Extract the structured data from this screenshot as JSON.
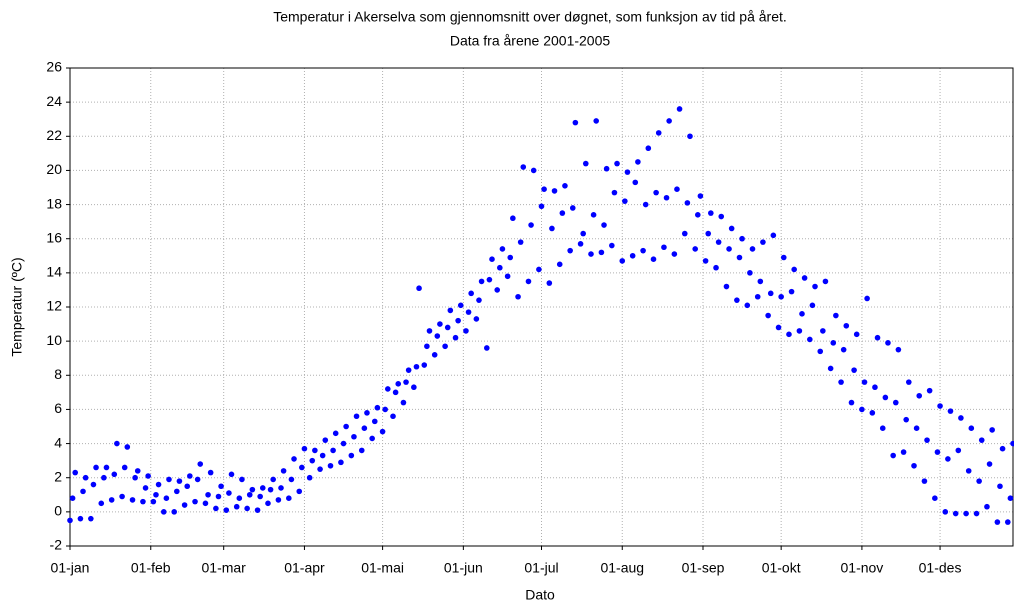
{
  "chart_data": {
    "type": "scatter",
    "title": "Temperatur i Akerselva som gjennomsnitt over døgnet, som funksjon av tid på året.",
    "subtitle": "Data fra årene 2001-2005",
    "x_label": "Dato",
    "y_label": "Temperatur (ºC)",
    "color": "#0000ff",
    "grid": true,
    "xlim": [
      0,
      362
    ],
    "ylim": [
      -2,
      26
    ],
    "xticks": [
      {
        "value": 0,
        "label": "01-jan"
      },
      {
        "value": 31,
        "label": "01-feb"
      },
      {
        "value": 59,
        "label": "01-mar"
      },
      {
        "value": 90,
        "label": "01-apr"
      },
      {
        "value": 120,
        "label": "01-mai"
      },
      {
        "value": 151,
        "label": "01-jun"
      },
      {
        "value": 181,
        "label": "01-jul"
      },
      {
        "value": 212,
        "label": "01-aug"
      },
      {
        "value": 243,
        "label": "01-sep"
      },
      {
        "value": 273,
        "label": "01-okt"
      },
      {
        "value": 304,
        "label": "01-nov"
      },
      {
        "value": 334,
        "label": "01-des"
      }
    ],
    "yticks": [
      -2,
      0,
      2,
      4,
      6,
      8,
      10,
      12,
      14,
      16,
      18,
      20,
      22,
      24,
      26
    ],
    "x": [
      0,
      1,
      2,
      4,
      5,
      6,
      8,
      9,
      10,
      12,
      13,
      14,
      16,
      17,
      18,
      20,
      21,
      22,
      24,
      25,
      26,
      28,
      29,
      30,
      32,
      33,
      34,
      36,
      37,
      38,
      40,
      41,
      42,
      44,
      45,
      46,
      48,
      49,
      50,
      52,
      53,
      54,
      56,
      57,
      58,
      60,
      61,
      62,
      64,
      65,
      66,
      68,
      69,
      70,
      72,
      73,
      74,
      76,
      77,
      78,
      80,
      81,
      82,
      84,
      85,
      86,
      88,
      89,
      90,
      92,
      93,
      94,
      96,
      97,
      98,
      100,
      101,
      102,
      104,
      105,
      106,
      108,
      109,
      110,
      112,
      113,
      114,
      116,
      117,
      118,
      120,
      121,
      122,
      124,
      125,
      126,
      128,
      129,
      130,
      132,
      133,
      134,
      136,
      137,
      138,
      140,
      141,
      142,
      144,
      145,
      146,
      148,
      149,
      150,
      152,
      153,
      154,
      156,
      157,
      158,
      160,
      161,
      162,
      164,
      165,
      166,
      168,
      169,
      170,
      172,
      173,
      174,
      176,
      177,
      178,
      180,
      181,
      182,
      184,
      185,
      186,
      188,
      189,
      190,
      192,
      193,
      194,
      196,
      197,
      198,
      200,
      201,
      202,
      204,
      205,
      206,
      208,
      209,
      210,
      212,
      213,
      214,
      216,
      217,
      218,
      220,
      221,
      222,
      224,
      225,
      226,
      228,
      229,
      230,
      232,
      233,
      234,
      236,
      237,
      238,
      240,
      241,
      242,
      244,
      245,
      246,
      248,
      249,
      250,
      252,
      253,
      254,
      256,
      257,
      258,
      260,
      261,
      262,
      264,
      265,
      266,
      268,
      269,
      270,
      272,
      273,
      274,
      276,
      277,
      278,
      280,
      281,
      282,
      284,
      285,
      286,
      288,
      289,
      290,
      292,
      293,
      294,
      296,
      297,
      298,
      300,
      301,
      302,
      304,
      305,
      306,
      308,
      309,
      310,
      312,
      313,
      314,
      316,
      317,
      318,
      320,
      321,
      322,
      324,
      325,
      326,
      328,
      329,
      330,
      332,
      333,
      334,
      336,
      337,
      338,
      340,
      341,
      342,
      344,
      345,
      346,
      348,
      349,
      350,
      352,
      353,
      354,
      356,
      357,
      358,
      360,
      361,
      362
    ],
    "values": [
      -0.5,
      0.8,
      2.3,
      -0.4,
      1.2,
      2.0,
      -0.4,
      1.6,
      2.6,
      0.5,
      2.0,
      2.6,
      0.7,
      2.2,
      4.0,
      0.9,
      2.6,
      3.8,
      0.7,
      2.0,
      2.4,
      0.6,
      1.4,
      2.1,
      0.6,
      1.0,
      1.6,
      0.0,
      0.8,
      1.9,
      0.0,
      1.2,
      1.8,
      0.4,
      1.5,
      2.1,
      0.6,
      1.9,
      2.8,
      0.5,
      1.0,
      2.3,
      0.2,
      0.9,
      1.5,
      0.1,
      1.1,
      2.2,
      0.3,
      0.8,
      1.9,
      0.2,
      1.0,
      1.3,
      0.1,
      0.9,
      1.4,
      0.5,
      1.3,
      1.9,
      0.7,
      1.4,
      2.4,
      0.8,
      1.9,
      3.1,
      1.2,
      2.6,
      3.7,
      2.0,
      3.0,
      3.6,
      2.5,
      3.3,
      4.2,
      2.7,
      3.6,
      4.6,
      2.9,
      4.0,
      5.0,
      3.3,
      4.4,
      5.6,
      3.6,
      4.9,
      5.8,
      4.3,
      5.3,
      6.1,
      4.7,
      6.0,
      7.2,
      5.6,
      7.0,
      7.5,
      6.4,
      7.6,
      8.3,
      7.3,
      8.5,
      13.1,
      8.6,
      9.7,
      10.6,
      9.2,
      10.3,
      11.0,
      9.7,
      10.8,
      11.8,
      10.2,
      11.2,
      12.1,
      10.6,
      11.7,
      12.8,
      11.3,
      12.4,
      13.5,
      9.6,
      13.6,
      14.8,
      13.0,
      14.3,
      15.4,
      13.8,
      14.9,
      17.2,
      12.6,
      15.8,
      20.2,
      13.5,
      16.8,
      20.0,
      14.2,
      17.9,
      18.9,
      13.4,
      16.6,
      18.8,
      14.5,
      17.5,
      19.1,
      15.3,
      17.8,
      22.8,
      15.7,
      16.3,
      20.4,
      15.1,
      17.4,
      22.9,
      15.2,
      16.8,
      20.1,
      15.6,
      18.7,
      20.4,
      14.7,
      18.2,
      19.9,
      15.0,
      19.3,
      20.5,
      15.3,
      18.0,
      21.3,
      14.8,
      18.7,
      22.2,
      15.5,
      18.4,
      22.9,
      15.1,
      18.9,
      23.6,
      16.3,
      18.1,
      22.0,
      15.4,
      17.4,
      18.5,
      14.7,
      16.3,
      17.5,
      14.3,
      15.8,
      17.3,
      13.2,
      15.4,
      16.6,
      12.4,
      14.9,
      16.0,
      12.1,
      14.0,
      15.4,
      12.6,
      13.5,
      15.8,
      11.5,
      12.8,
      16.2,
      10.8,
      12.6,
      14.9,
      10.4,
      12.9,
      14.2,
      10.6,
      11.6,
      13.7,
      10.1,
      12.1,
      13.2,
      9.4,
      10.6,
      13.5,
      8.4,
      9.9,
      11.5,
      7.6,
      9.5,
      10.9,
      6.4,
      8.3,
      10.4,
      6.0,
      7.6,
      12.5,
      5.8,
      7.3,
      10.2,
      4.9,
      6.7,
      9.9,
      3.3,
      6.4,
      9.5,
      3.5,
      5.4,
      7.6,
      2.7,
      4.9,
      6.8,
      1.8,
      4.2,
      7.1,
      0.8,
      3.5,
      6.2,
      0.0,
      3.1,
      5.9,
      -0.1,
      3.6,
      5.5,
      -0.1,
      2.4,
      4.9,
      -0.1,
      1.8,
      4.2,
      0.3,
      2.8,
      4.8,
      -0.6,
      1.5,
      3.7,
      -0.6,
      0.8,
      4.0
    ]
  }
}
